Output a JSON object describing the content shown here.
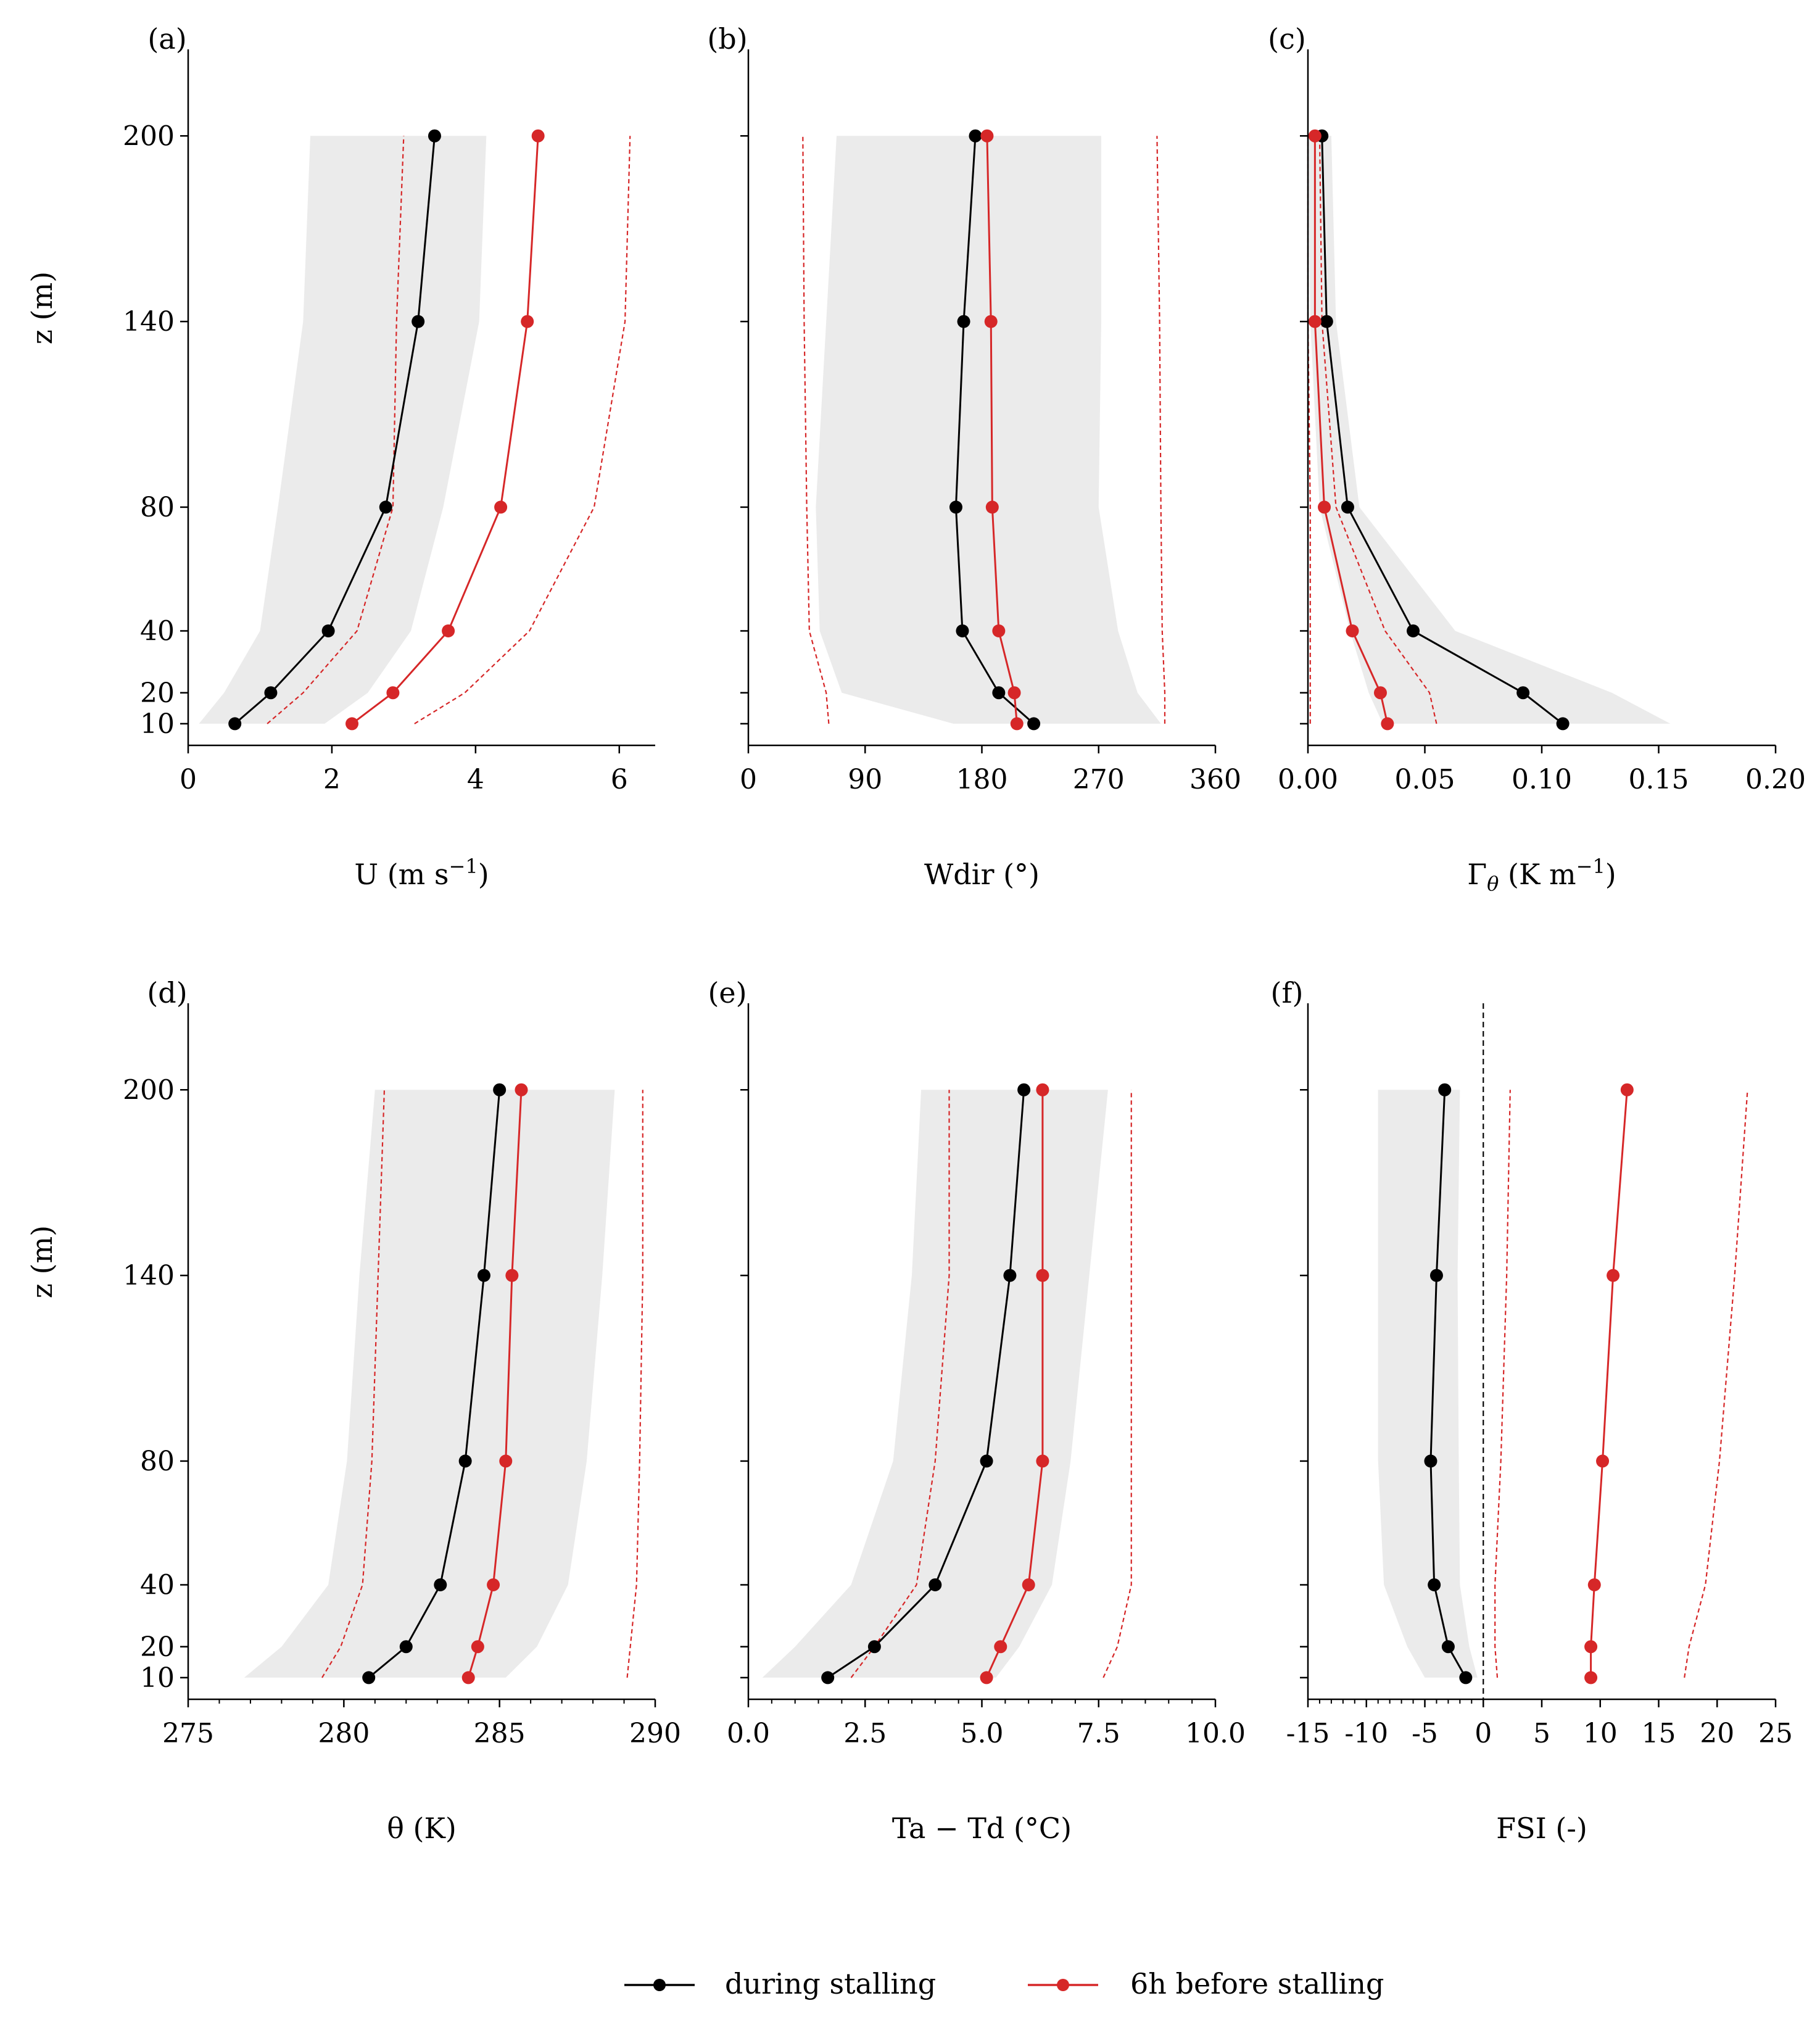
{
  "figure": {
    "type": "multi-panel line chart",
    "heights_m": [
      10,
      20,
      40,
      80,
      140,
      200
    ]
  },
  "legend": {
    "items": [
      {
        "label": "during stalling",
        "color": "#000000"
      },
      {
        "label": "6h before stalling",
        "color": "#d62728"
      }
    ]
  },
  "colors": {
    "during": "#000000",
    "before": "#d62728",
    "band": "#ebebeb"
  },
  "chart_data": [
    {
      "panel": "(a)",
      "type": "line",
      "xlabel": "U (m s",
      "xlabel_sup": "−1",
      "xlabel_tail": ")",
      "ylabel": "z (m)",
      "xlim": [
        0,
        6.5
      ],
      "ylim": [
        3,
        218
      ],
      "xticks": [
        0,
        2,
        4,
        6
      ],
      "xtick_labels": [
        "0",
        "2",
        "4",
        "6"
      ],
      "xminor": [],
      "yticks": [
        10,
        20,
        40,
        80,
        140,
        200
      ],
      "ytick_labels": [
        "10",
        "20",
        "40",
        "80",
        "140",
        "200"
      ],
      "z": [
        10,
        20,
        40,
        80,
        140,
        200
      ],
      "series": [
        {
          "name": "during stalling",
          "values": [
            0.65,
            1.15,
            1.95,
            2.75,
            3.2,
            3.43
          ]
        },
        {
          "name": "6h before stalling",
          "values": [
            2.28,
            2.85,
            3.62,
            4.35,
            4.72,
            4.87
          ]
        }
      ],
      "band": {
        "lower": [
          0.15,
          0.5,
          1.0,
          1.25,
          1.6,
          1.7
        ],
        "upper": [
          1.9,
          2.5,
          3.1,
          3.55,
          4.05,
          4.15
        ]
      },
      "dashed_before": {
        "lower": [
          1.1,
          1.6,
          2.35,
          2.85,
          2.9,
          3.0
        ],
        "upper": [
          3.15,
          3.85,
          4.75,
          5.65,
          6.08,
          6.15
        ]
      }
    },
    {
      "panel": "(b)",
      "type": "line",
      "xlabel": "Wdir (°)",
      "xlabel_sup": "",
      "xlabel_tail": "",
      "ylabel": "",
      "xlim": [
        0,
        360
      ],
      "ylim": [
        3,
        218
      ],
      "xticks": [
        0,
        90,
        180,
        270,
        360
      ],
      "xtick_labels": [
        "0",
        "90",
        "180",
        "270",
        "360"
      ],
      "xminor": [],
      "yticks": [
        10,
        20,
        40,
        80,
        140,
        200
      ],
      "ytick_labels": [],
      "z": [
        10,
        20,
        40,
        80,
        140,
        200
      ],
      "series": [
        {
          "name": "during stalling",
          "values": [
            220,
            193,
            165,
            160,
            166,
            175
          ]
        },
        {
          "name": "6h before stalling",
          "values": [
            207,
            205,
            193,
            188,
            187,
            184
          ]
        }
      ],
      "band": {
        "lower": [
          158,
          72,
          55,
          52,
          60,
          68
        ],
        "upper": [
          318,
          300,
          285,
          270,
          272,
          272
        ]
      },
      "dashed_before": {
        "lower": [
          62,
          60,
          47,
          45,
          43,
          42
        ],
        "upper": [
          321,
          321,
          319,
          318,
          317,
          315
        ]
      }
    },
    {
      "panel": "(c)",
      "type": "line",
      "xlabel": "Γ",
      "xlabel_sub": "θ",
      "xlabel_sup": "−1",
      "xlabel_tail": ")",
      "xlabel_mid": " (K m",
      "ylabel": "",
      "xlim": [
        0,
        0.2
      ],
      "ylim": [
        3,
        218
      ],
      "xticks": [
        0.0,
        0.05,
        0.1,
        0.15,
        0.2
      ],
      "xtick_labels": [
        "0.00",
        "0.05",
        "0.10",
        "0.15",
        "0.20"
      ],
      "xminor": [],
      "yticks": [
        10,
        20,
        40,
        80,
        140,
        200
      ],
      "ytick_labels": [],
      "z": [
        10,
        20,
        40,
        80,
        140,
        200
      ],
      "series": [
        {
          "name": "during stalling",
          "values": [
            0.109,
            0.092,
            0.045,
            0.017,
            0.008,
            0.006
          ]
        },
        {
          "name": "6h before stalling",
          "values": [
            0.034,
            0.031,
            0.019,
            0.007,
            0.003,
            0.003
          ]
        }
      ],
      "band": {
        "lower": [
          0.032,
          0.026,
          0.018,
          0.005,
          0.001,
          0.0
        ],
        "upper": [
          0.155,
          0.13,
          0.063,
          0.022,
          0.012,
          0.01
        ]
      },
      "dashed_before": {
        "lower": [
          0.001,
          0.001,
          0.001,
          0.001,
          0.0,
          0.0
        ],
        "upper": [
          0.055,
          0.052,
          0.033,
          0.012,
          0.006,
          0.005
        ]
      }
    },
    {
      "panel": "(d)",
      "type": "line",
      "xlabel": "θ (K)",
      "xlabel_sup": "",
      "xlabel_tail": "",
      "ylabel": "z (m)",
      "xlim": [
        275,
        290
      ],
      "ylim": [
        3,
        218
      ],
      "xticks": [
        275,
        280,
        285,
        290
      ],
      "xtick_labels": [
        "275",
        "280",
        "285",
        "290"
      ],
      "xminor": [
        276,
        277,
        278,
        279,
        281,
        282,
        283,
        284,
        286,
        287,
        288,
        289
      ],
      "yticks": [
        10,
        20,
        40,
        80,
        140,
        200
      ],
      "ytick_labels": [
        "10",
        "20",
        "40",
        "80",
        "140",
        "200"
      ],
      "z": [
        10,
        20,
        40,
        80,
        140,
        200
      ],
      "series": [
        {
          "name": "during stalling",
          "values": [
            280.8,
            282.0,
            283.1,
            283.9,
            284.5,
            285.0
          ]
        },
        {
          "name": "6h before stalling",
          "values": [
            284.0,
            284.3,
            284.8,
            285.2,
            285.4,
            285.7
          ]
        }
      ],
      "band": {
        "lower": [
          276.8,
          278.0,
          279.5,
          280.1,
          280.5,
          281.0
        ],
        "upper": [
          285.2,
          286.2,
          287.2,
          287.8,
          288.3,
          288.7
        ]
      },
      "dashed_before": {
        "lower": [
          279.3,
          279.9,
          280.6,
          280.9,
          281.1,
          281.3
        ],
        "upper": [
          289.1,
          289.2,
          289.4,
          289.5,
          289.6,
          289.6
        ]
      }
    },
    {
      "panel": "(e)",
      "type": "line",
      "xlabel": "Ta − Td (°C)",
      "xlabel_sup": "",
      "xlabel_tail": "",
      "ylabel": "",
      "xlim": [
        0,
        10
      ],
      "ylim": [
        3,
        218
      ],
      "xticks": [
        0,
        2.5,
        5,
        7.5,
        10
      ],
      "xtick_labels": [
        "0.0",
        "2.5",
        "5.0",
        "7.5",
        "10.0"
      ],
      "xminor": [
        0.5,
        1,
        1.5,
        2,
        3,
        3.5,
        4,
        4.5,
        5.5,
        6,
        6.5,
        7,
        8,
        8.5,
        9,
        9.5
      ],
      "yticks": [
        10,
        20,
        40,
        80,
        140,
        200
      ],
      "ytick_labels": [],
      "z": [
        10,
        20,
        40,
        80,
        140,
        200
      ],
      "series": [
        {
          "name": "during stalling",
          "values": [
            1.7,
            2.7,
            4.0,
            5.1,
            5.6,
            5.9
          ]
        },
        {
          "name": "6h before stalling",
          "values": [
            5.1,
            5.4,
            6.0,
            6.3,
            6.3,
            6.3
          ]
        }
      ],
      "band": {
        "lower": [
          0.3,
          1.0,
          2.2,
          3.1,
          3.5,
          3.7
        ],
        "upper": [
          5.3,
          5.8,
          6.5,
          6.9,
          7.3,
          7.7
        ]
      },
      "dashed_before": {
        "lower": [
          2.2,
          2.7,
          3.6,
          4.0,
          4.3,
          4.3
        ],
        "upper": [
          7.6,
          7.9,
          8.2,
          8.2,
          8.2,
          8.2
        ]
      }
    },
    {
      "panel": "(f)",
      "type": "line",
      "xlabel": "FSI (-)",
      "xlabel_sup": "",
      "xlabel_tail": "",
      "ylabel": "",
      "xlim": [
        -15,
        25
      ],
      "ylim": [
        3,
        218
      ],
      "xticks": [
        -15,
        -10,
        -5,
        0,
        5,
        10,
        15,
        20,
        25
      ],
      "xtick_labels": [
        "-15",
        "-10",
        "-5",
        "0",
        "5",
        "10",
        "15",
        "20",
        "25"
      ],
      "xminor": [
        -14,
        -13,
        -12,
        -11,
        -9,
        -8,
        -7,
        -6,
        -4,
        -3,
        -2,
        -1
      ],
      "vline": 0,
      "yticks": [
        10,
        20,
        40,
        80,
        140,
        200
      ],
      "ytick_labels": [],
      "z": [
        10,
        20,
        40,
        80,
        140,
        200
      ],
      "series": [
        {
          "name": "during stalling",
          "values": [
            -1.5,
            -3.0,
            -4.2,
            -4.5,
            -4.0,
            -3.3
          ]
        },
        {
          "name": "6h before stalling",
          "values": [
            9.2,
            9.2,
            9.5,
            10.2,
            11.1,
            12.3
          ]
        }
      ],
      "band": {
        "lower": [
          -5.0,
          -6.5,
          -8.5,
          -9.0,
          -9.0,
          -9.0
        ],
        "upper": [
          -0.5,
          -1.2,
          -2.0,
          -2.1,
          -2.2,
          -2.0
        ]
      },
      "dashed_before": {
        "lower": [
          1.2,
          1.0,
          1.0,
          1.5,
          2.0,
          2.3
        ],
        "upper": [
          17.2,
          17.6,
          19.0,
          20.2,
          21.5,
          22.6
        ]
      }
    }
  ]
}
